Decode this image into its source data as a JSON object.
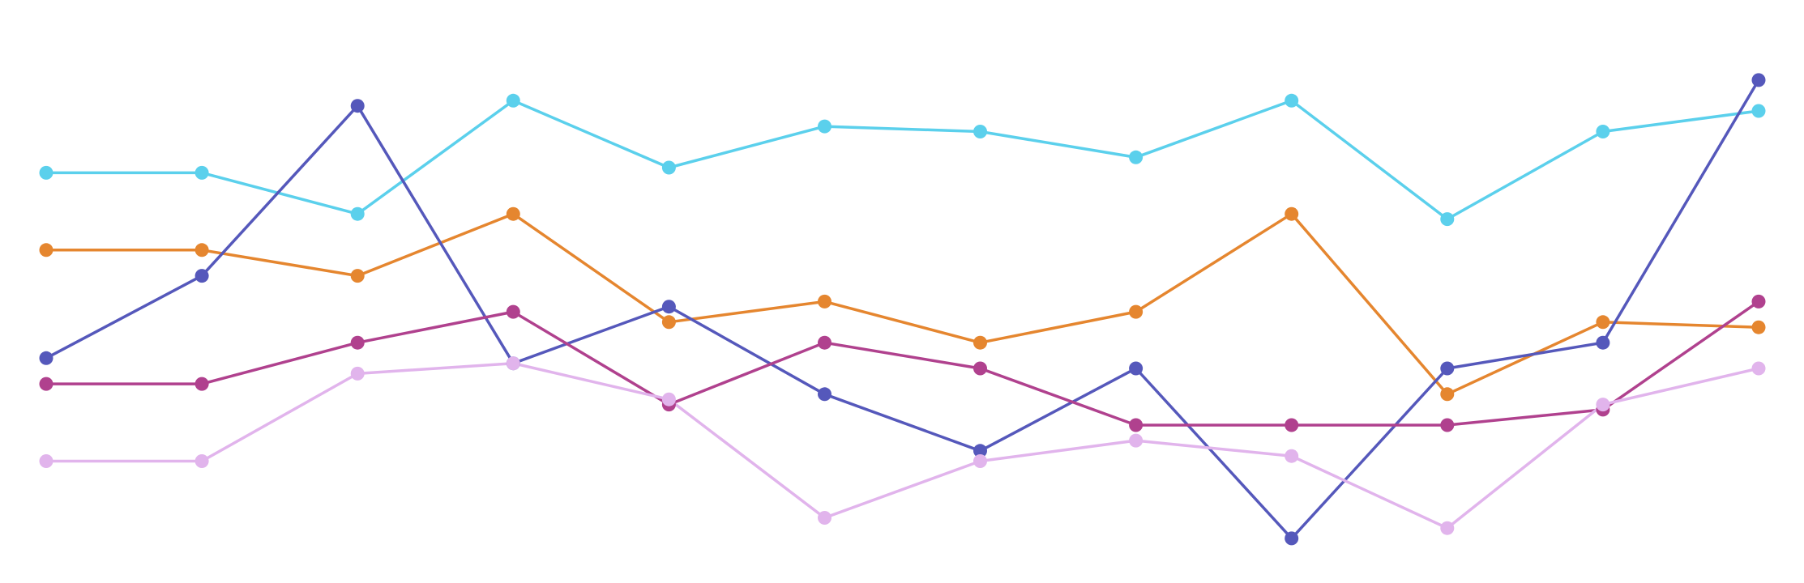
{
  "chart_data": {
    "type": "line",
    "title": "",
    "xlabel": "",
    "ylabel": "",
    "x": [
      0,
      1,
      2,
      3,
      4,
      5,
      6,
      7,
      8,
      9,
      10,
      11
    ],
    "ylim": [
      0,
      100
    ],
    "grid": false,
    "legend": "none",
    "series": [
      {
        "color": "#5bd0ec",
        "values": [
          74,
          74,
          66,
          88,
          75,
          83,
          82,
          77,
          88,
          65,
          82,
          86
        ]
      },
      {
        "color": "#e5862f",
        "values": [
          59,
          59,
          54,
          66,
          45,
          49,
          41,
          47,
          66,
          31,
          45,
          44
        ]
      },
      {
        "color": "#5558bb",
        "values": [
          38,
          54,
          87,
          37,
          48,
          31,
          20,
          36,
          3,
          36,
          41,
          92
        ]
      },
      {
        "color": "#b0418e",
        "values": [
          33,
          33,
          41,
          47,
          29,
          41,
          36,
          25,
          25,
          25,
          28,
          49
        ]
      },
      {
        "color": "#e1b4ec",
        "values": [
          18,
          18,
          35,
          37,
          30,
          7,
          18,
          22,
          19,
          5,
          29,
          36
        ]
      }
    ]
  }
}
